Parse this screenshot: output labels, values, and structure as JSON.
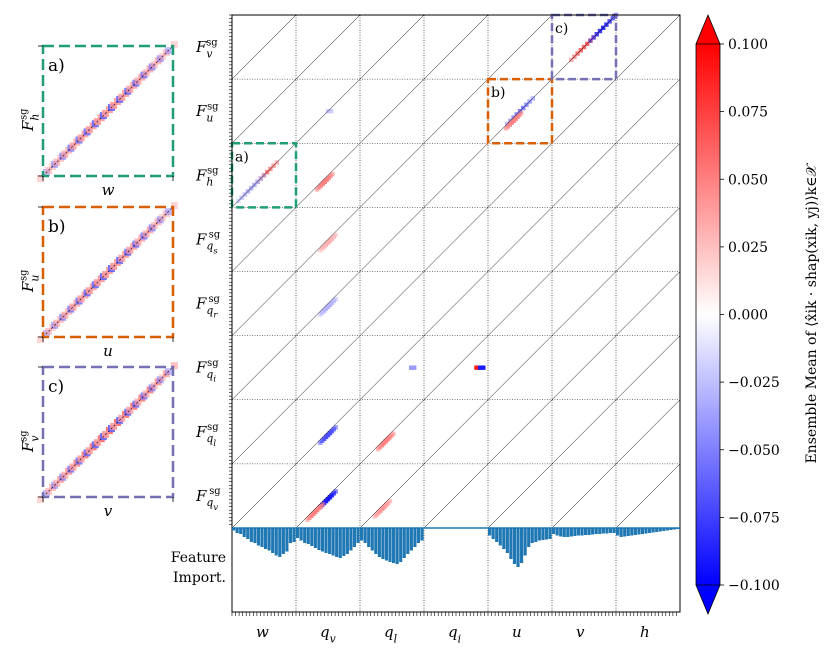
{
  "chart_data": {
    "type": "heatmap",
    "title": "",
    "output_labels": [
      {
        "base": "F",
        "sub": "v",
        "sup": "sg"
      },
      {
        "base": "F",
        "sub": "u",
        "sup": "sg"
      },
      {
        "base": "F",
        "sub": "h",
        "sup": "sg"
      },
      {
        "base": "F",
        "sub": "q",
        "subsub": "s",
        "sup": "sg"
      },
      {
        "base": "F",
        "sub": "q",
        "subsub": "r",
        "sup": "sg"
      },
      {
        "base": "F",
        "sub": "q",
        "subsub": "i",
        "sup": "sg"
      },
      {
        "base": "F",
        "sub": "q",
        "subsub": "l",
        "sup": "sg"
      },
      {
        "base": "F",
        "sub": "q",
        "subsub": "v",
        "sup": "sg"
      }
    ],
    "input_labels": [
      {
        "base": "w"
      },
      {
        "base": "q",
        "sub": "v"
      },
      {
        "base": "q",
        "sub": "l"
      },
      {
        "base": "q",
        "sub": "i"
      },
      {
        "base": "u"
      },
      {
        "base": "v"
      },
      {
        "base": "h"
      }
    ],
    "feature_importance_label_1": "Feature",
    "feature_importance_label_2": "Import.",
    "colorbar": {
      "label": "Ensemble Mean of ⟨x̂ik · shap(xik, yj)⟩k∈𝒳",
      "ticks": [
        "0.100",
        "0.075",
        "0.050",
        "0.025",
        "0.000",
        "−0.025",
        "−0.050",
        "−0.075",
        "−0.100"
      ],
      "tick_values": [
        0.1,
        0.075,
        0.05,
        0.025,
        0.0,
        -0.025,
        -0.05,
        -0.075,
        -0.1
      ],
      "min": -0.1,
      "max": 0.1,
      "colormap": "bwr",
      "color_min": "#0000ff",
      "color_mid": "#ffffff",
      "color_max": "#ff0000"
    },
    "blobs": [
      {
        "row": 0,
        "col": 5,
        "strength": 0.06,
        "kind": "diag",
        "pos": 0.5
      },
      {
        "row": 0,
        "col": 5,
        "strength": -0.08,
        "kind": "diag",
        "pos": 0.8
      },
      {
        "row": 1,
        "col": 4,
        "strength": -0.05,
        "kind": "diag",
        "pos": 0.5
      },
      {
        "row": 1,
        "col": 4,
        "strength": 0.05,
        "kind": "offdiag",
        "pos": 0.4
      },
      {
        "row": 1,
        "col": 1,
        "strength": -0.02,
        "kind": "spot",
        "pos": 0.5
      },
      {
        "row": 2,
        "col": 0,
        "strength": 0.05,
        "kind": "diag",
        "pos": 0.5
      },
      {
        "row": 2,
        "col": 0,
        "strength": -0.03,
        "kind": "diag",
        "pos": 0.3
      },
      {
        "row": 2,
        "col": 1,
        "strength": 0.05,
        "kind": "offdiag",
        "pos": 0.45
      },
      {
        "row": 3,
        "col": 1,
        "strength": 0.03,
        "kind": "offdiag",
        "pos": 0.5
      },
      {
        "row": 4,
        "col": 1,
        "strength": -0.03,
        "kind": "offdiag",
        "pos": 0.5
      },
      {
        "row": 5,
        "col": 2,
        "strength": -0.04,
        "kind": "spot",
        "pos": 0.8
      },
      {
        "row": 5,
        "col": 3,
        "strength": 0.09,
        "kind": "spot",
        "pos": 0.82
      },
      {
        "row": 5,
        "col": 3,
        "strength": -0.09,
        "kind": "spot",
        "pos": 0.88
      },
      {
        "row": 6,
        "col": 1,
        "strength": -0.07,
        "kind": "offdiag",
        "pos": 0.5
      },
      {
        "row": 6,
        "col": 2,
        "strength": 0.05,
        "kind": "offdiag",
        "pos": 0.4
      },
      {
        "row": 7,
        "col": 1,
        "strength": -0.09,
        "kind": "offdiag",
        "pos": 0.5
      },
      {
        "row": 7,
        "col": 1,
        "strength": 0.05,
        "kind": "offdiag",
        "pos": 0.3
      },
      {
        "row": 7,
        "col": 2,
        "strength": 0.04,
        "kind": "offdiag",
        "pos": 0.35
      }
    ],
    "feature_importance": [
      0.05,
      0.1,
      0.12,
      0.18,
      0.22,
      0.28,
      0.3,
      0.35,
      0.38,
      0.42,
      0.45,
      0.5,
      0.55,
      0.58,
      0.52,
      0.47,
      0.3,
      0.28,
      0.2,
      0.25,
      0.3,
      0.32,
      0.36,
      0.4,
      0.44,
      0.47,
      0.5,
      0.52,
      0.55,
      0.58,
      0.6,
      0.56,
      0.52,
      0.45,
      0.38,
      0.3,
      0.25,
      0.3,
      0.38,
      0.45,
      0.52,
      0.58,
      0.62,
      0.65,
      0.68,
      0.7,
      0.72,
      0.68,
      0.6,
      0.52,
      0.45,
      0.38,
      0.3,
      0.25,
      0,
      0,
      0,
      0,
      0,
      0,
      0,
      0,
      0,
      0,
      0,
      0,
      0,
      0,
      0,
      0,
      0,
      0,
      0.15,
      0.22,
      0.28,
      0.35,
      0.42,
      0.5,
      0.62,
      0.72,
      0.78,
      0.7,
      0.55,
      0.38,
      0.3,
      0.28,
      0.25,
      0.24,
      0.23,
      0.22,
      0.12,
      0.15,
      0.17,
      0.18,
      0.18,
      0.17,
      0.16,
      0.15,
      0.15,
      0.14,
      0.14,
      0.13,
      0.12,
      0.12,
      0.11,
      0.11,
      0.1,
      0.1,
      0.15,
      0.18,
      0.17,
      0.16,
      0.15,
      0.14,
      0.13,
      0.12,
      0.11,
      0.1,
      0.09,
      0.08,
      0.07,
      0.06,
      0.05,
      0.04,
      0.03,
      0.02
    ],
    "insets": [
      {
        "panel_label": "a)",
        "xlabel": "w",
        "ylabel": {
          "base": "F",
          "sub": "h",
          "sup": "sg"
        },
        "border_color": "#1f9e77",
        "row": 2,
        "col": 0
      },
      {
        "panel_label": "b)",
        "xlabel": "u",
        "ylabel": {
          "base": "F",
          "sub": "u",
          "sup": "sg"
        },
        "border_color": "#d95f02",
        "row": 1,
        "col": 4
      },
      {
        "panel_label": "c)",
        "xlabel": "v",
        "ylabel": {
          "base": "F",
          "sub": "v",
          "sup": "sg"
        },
        "border_color": "#7570b3",
        "row": 0,
        "col": 5
      }
    ]
  }
}
